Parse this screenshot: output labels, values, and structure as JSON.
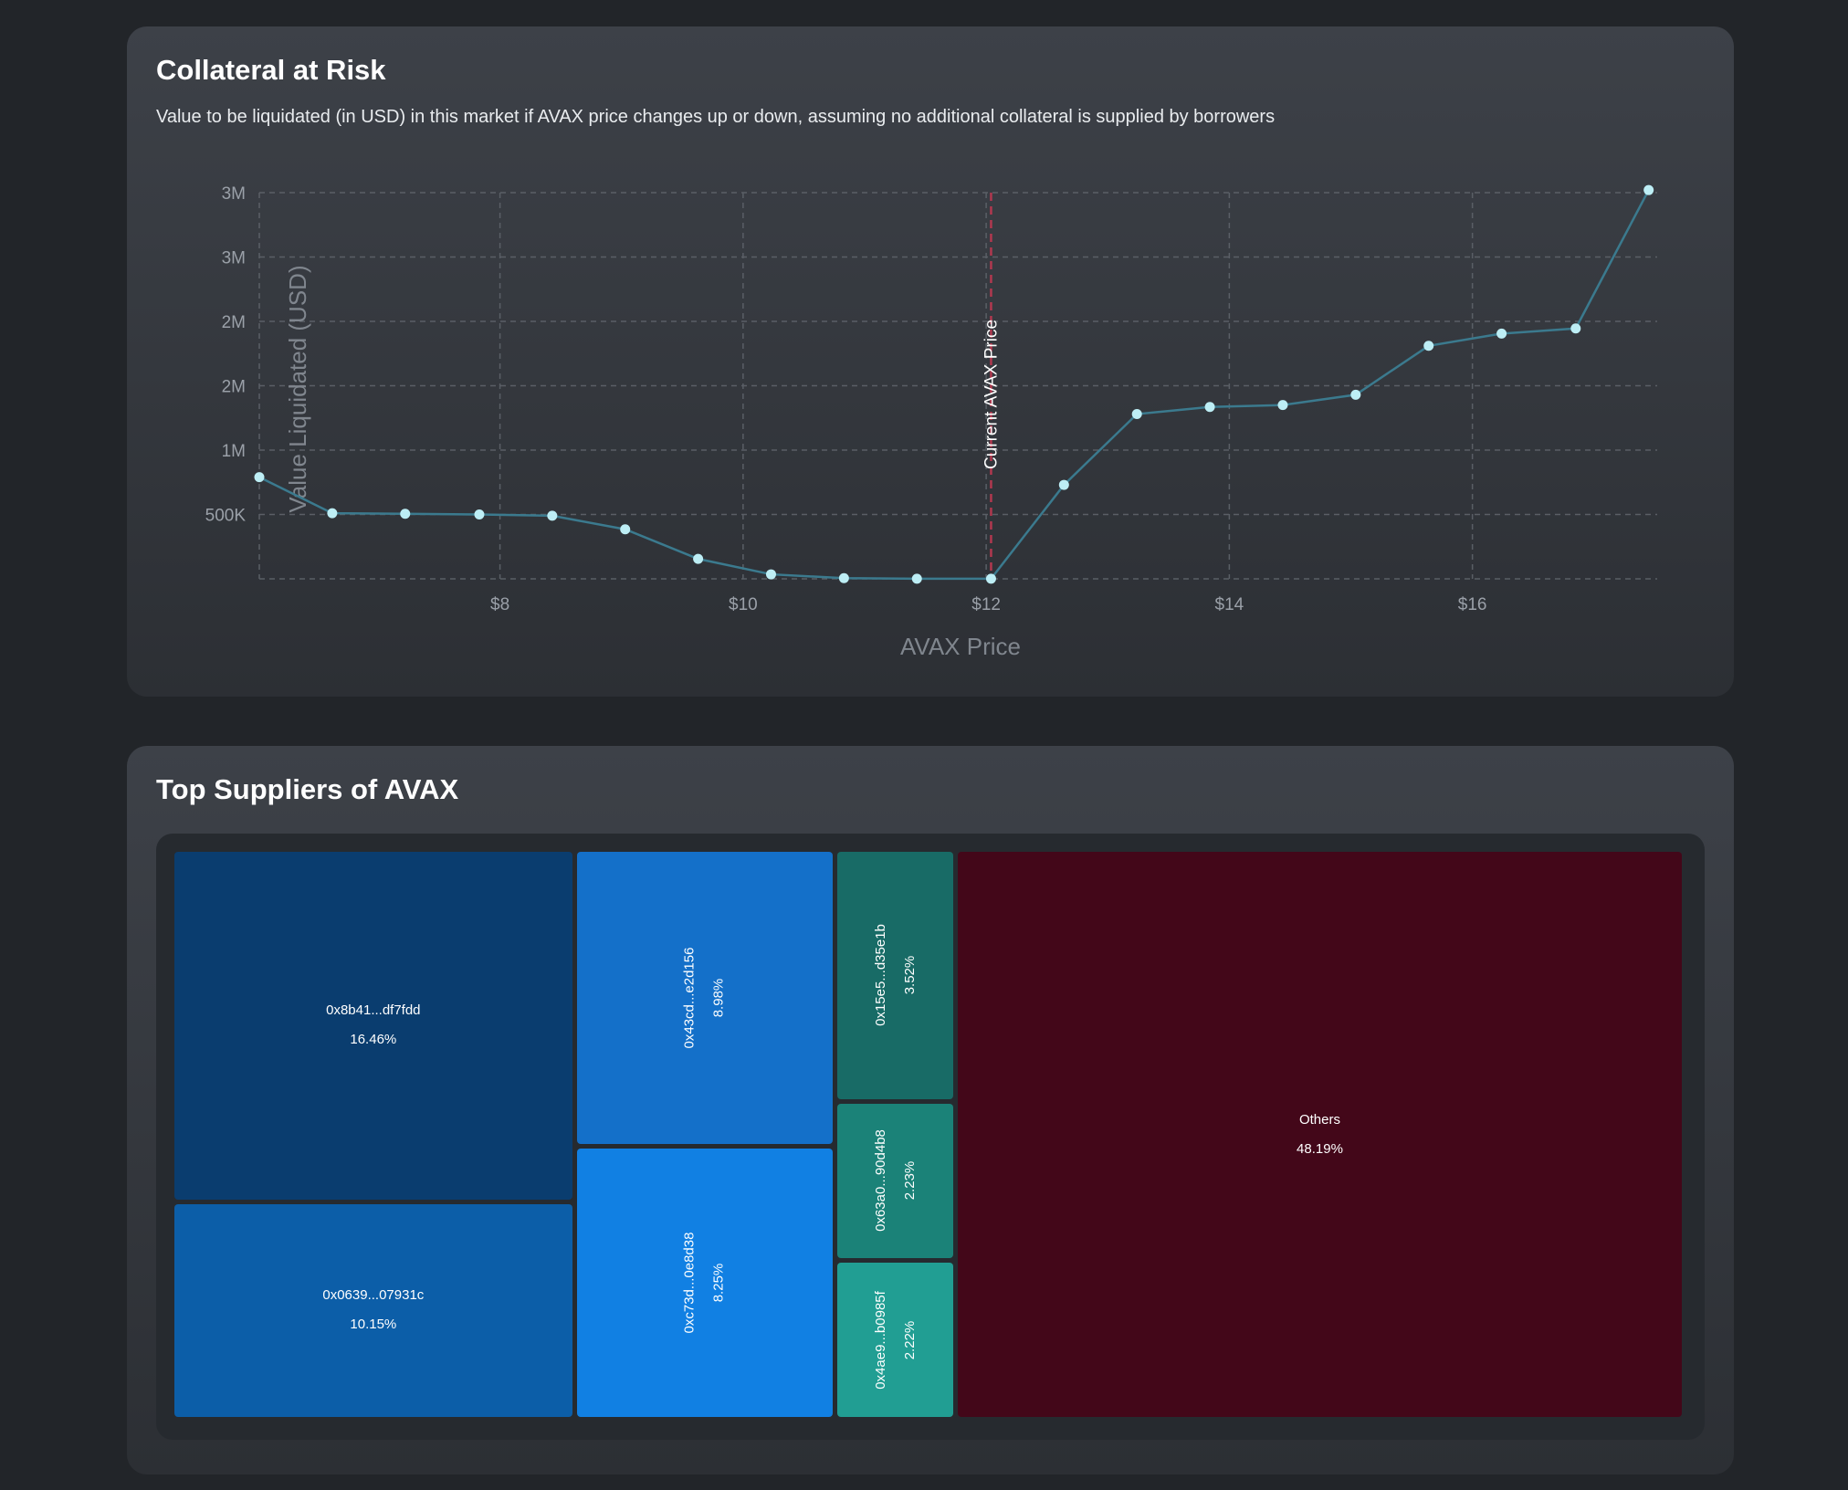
{
  "risk_card": {
    "title": "Collateral at Risk",
    "subtitle": "Value to be liquidated (in USD) in this market if AVAX price changes up or down, assuming no additional collateral is supplied by borrowers",
    "ref_line_label": "Current AVAX Price"
  },
  "suppliers_card": {
    "title": "Top Suppliers of AVAX"
  },
  "chart_data": [
    {
      "type": "line",
      "title": "Collateral at Risk",
      "xlabel": "AVAX Price",
      "ylabel": "Value Liquidated (USD)",
      "xlim": [
        6.02,
        17.52
      ],
      "ylim": [
        0,
        3000000
      ],
      "x_ticks": [
        8,
        10,
        12,
        14,
        16
      ],
      "x_tick_labels": [
        "$8",
        "$10",
        "$12",
        "$14",
        "$16"
      ],
      "y_ticks": [
        500000,
        1000000,
        1500000,
        2000000,
        2500000,
        3000000
      ],
      "y_tick_labels": [
        "500K",
        "1M",
        "2M",
        "2M",
        "3M",
        "3M"
      ],
      "grid": true,
      "reference_line": {
        "x": 12.04,
        "label": "Current AVAX Price",
        "color": "#b1384f"
      },
      "line_color": "#3b7a8e",
      "point_color": "#bdeef5",
      "x": [
        6.02,
        6.62,
        7.22,
        7.83,
        8.43,
        9.03,
        9.63,
        10.23,
        10.83,
        11.43,
        12.04,
        12.64,
        13.24,
        13.84,
        14.44,
        15.04,
        15.64,
        16.24,
        16.85,
        17.45
      ],
      "y": [
        790000,
        510000,
        505000,
        500000,
        490000,
        385000,
        155000,
        35000,
        5000,
        1000,
        1000,
        730000,
        1280000,
        1335000,
        1350000,
        1430000,
        1810000,
        1905000,
        1945000,
        3020000
      ]
    },
    {
      "type": "treemap",
      "title": "Top Suppliers of AVAX",
      "labels": [
        "0x8b41...df7fdd",
        "0x0639...07931c",
        "0x43cd...e2d156",
        "0xc73d...0e8d38",
        "0x15e5...d35e1b",
        "0x63a0...90d4b8",
        "0x4ae9...b0985f",
        "Others"
      ],
      "values": [
        16.46,
        10.15,
        8.98,
        8.25,
        3.52,
        2.23,
        2.22,
        48.19
      ],
      "value_labels": [
        "16.46%",
        "10.15%",
        "8.98%",
        "8.25%",
        "3.52%",
        "2.23%",
        "2.22%",
        "48.19%"
      ],
      "colors": [
        "#0a3d6f",
        "#0c5ea8",
        "#1470c9",
        "#1180e3",
        "#186b66",
        "#1b8278",
        "#219e93",
        "#430719"
      ]
    }
  ]
}
